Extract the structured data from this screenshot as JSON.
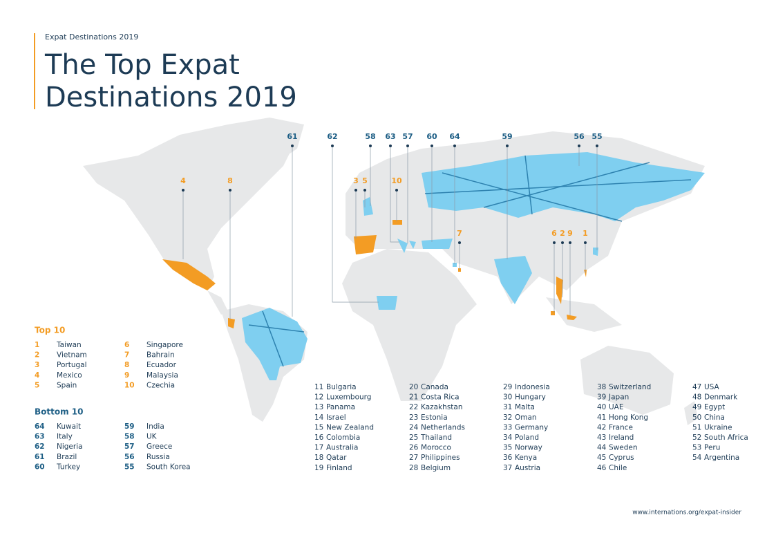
{
  "header": {
    "kicker": "Expat Destinations 2019",
    "title_lines": [
      "The Top Expat",
      "Destinations 2019"
    ]
  },
  "map_markers": {
    "top": [
      4,
      8,
      3,
      5,
      10,
      7,
      6,
      2,
      9,
      1
    ],
    "bottom": [
      61,
      62,
      58,
      63,
      57,
      60,
      64,
      59,
      56,
      55
    ]
  },
  "top10": {
    "title": "Top 10",
    "items": [
      {
        "rank": 1,
        "country": "Taiwan"
      },
      {
        "rank": 2,
        "country": "Vietnam"
      },
      {
        "rank": 3,
        "country": "Portugal"
      },
      {
        "rank": 4,
        "country": "Mexico"
      },
      {
        "rank": 5,
        "country": "Spain"
      },
      {
        "rank": 6,
        "country": "Singapore"
      },
      {
        "rank": 7,
        "country": "Bahrain"
      },
      {
        "rank": 8,
        "country": "Ecuador"
      },
      {
        "rank": 9,
        "country": "Malaysia"
      },
      {
        "rank": 10,
        "country": "Czechia"
      }
    ]
  },
  "bottom10": {
    "title": "Bottom 10",
    "items": [
      {
        "rank": 64,
        "country": "Kuwait"
      },
      {
        "rank": 63,
        "country": "Italy"
      },
      {
        "rank": 62,
        "country": "Nigeria"
      },
      {
        "rank": 61,
        "country": "Brazil"
      },
      {
        "rank": 60,
        "country": "Turkey"
      },
      {
        "rank": 59,
        "country": "India"
      },
      {
        "rank": 58,
        "country": "UK"
      },
      {
        "rank": 57,
        "country": "Greece"
      },
      {
        "rank": 56,
        "country": "Russia"
      },
      {
        "rank": 55,
        "country": "South Korea"
      }
    ]
  },
  "others": [
    {
      "rank": 11,
      "country": "Bulgaria"
    },
    {
      "rank": 12,
      "country": "Luxembourg"
    },
    {
      "rank": 13,
      "country": "Panama"
    },
    {
      "rank": 14,
      "country": "Israel"
    },
    {
      "rank": 15,
      "country": "New Zealand"
    },
    {
      "rank": 16,
      "country": "Colombia"
    },
    {
      "rank": 17,
      "country": "Australia"
    },
    {
      "rank": 18,
      "country": "Qatar"
    },
    {
      "rank": 19,
      "country": "Finland"
    },
    {
      "rank": 20,
      "country": "Canada"
    },
    {
      "rank": 21,
      "country": "Costa Rica"
    },
    {
      "rank": 22,
      "country": "Kazakhstan"
    },
    {
      "rank": 23,
      "country": "Estonia"
    },
    {
      "rank": 24,
      "country": "Netherlands"
    },
    {
      "rank": 25,
      "country": "Thailand"
    },
    {
      "rank": 26,
      "country": "Morocco"
    },
    {
      "rank": 27,
      "country": "Philippines"
    },
    {
      "rank": 28,
      "country": "Belgium"
    },
    {
      "rank": 29,
      "country": "Indonesia"
    },
    {
      "rank": 30,
      "country": "Hungary"
    },
    {
      "rank": 31,
      "country": "Malta"
    },
    {
      "rank": 32,
      "country": "Oman"
    },
    {
      "rank": 33,
      "country": "Germany"
    },
    {
      "rank": 34,
      "country": "Poland"
    },
    {
      "rank": 35,
      "country": "Norway"
    },
    {
      "rank": 36,
      "country": "Kenya"
    },
    {
      "rank": 37,
      "country": "Austria"
    },
    {
      "rank": 38,
      "country": "Switzerland"
    },
    {
      "rank": 39,
      "country": "Japan"
    },
    {
      "rank": 40,
      "country": "UAE"
    },
    {
      "rank": 41,
      "country": "Hong Kong"
    },
    {
      "rank": 42,
      "country": "France"
    },
    {
      "rank": 43,
      "country": "Ireland"
    },
    {
      "rank": 44,
      "country": "Sweden"
    },
    {
      "rank": 45,
      "country": "Cyprus"
    },
    {
      "rank": 46,
      "country": "Chile"
    },
    {
      "rank": 47,
      "country": "USA"
    },
    {
      "rank": 48,
      "country": "Denmark"
    },
    {
      "rank": 49,
      "country": "Egypt"
    },
    {
      "rank": 50,
      "country": "China"
    },
    {
      "rank": 51,
      "country": "Ukraine"
    },
    {
      "rank": 52,
      "country": "South Africa"
    },
    {
      "rank": 53,
      "country": "Peru"
    },
    {
      "rank": 54,
      "country": "Argentina"
    }
  ],
  "footer": {
    "url": "www.internations.org/expat-insider"
  }
}
